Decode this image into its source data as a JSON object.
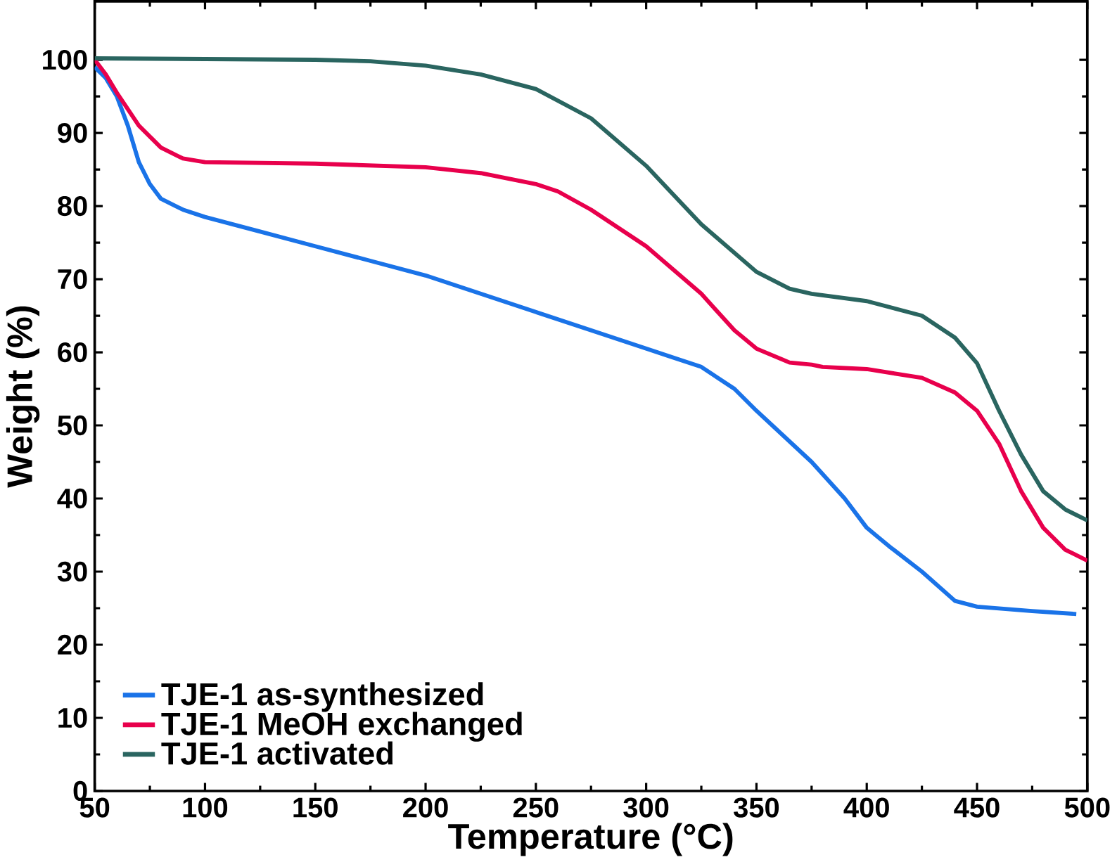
{
  "chart_data": {
    "type": "line",
    "xlabel": "Temperature (°C)",
    "ylabel": "Weight (%)",
    "xlim": [
      50,
      500
    ],
    "ylim": [
      0,
      108
    ],
    "xticks": [
      50,
      100,
      150,
      200,
      250,
      300,
      350,
      400,
      450,
      500
    ],
    "yticks": [
      0,
      10,
      20,
      30,
      40,
      50,
      60,
      70,
      80,
      90,
      100
    ],
    "legend": "bottom left",
    "grid": false,
    "marker": "none",
    "line_style": "solid",
    "series": [
      {
        "name": "TJE-1 as-synthesized",
        "color": "#1a73e8",
        "x": [
          50,
          55,
          60,
          65,
          70,
          75,
          80,
          90,
          100,
          125,
          150,
          175,
          200,
          225,
          250,
          275,
          300,
          325,
          340,
          350,
          375,
          390,
          400,
          410,
          425,
          440,
          450,
          475,
          495
        ],
        "values": [
          99,
          97.5,
          95,
          91,
          86,
          83,
          81,
          79.5,
          78.5,
          76.5,
          74.5,
          72.5,
          70.5,
          68,
          65.5,
          63,
          60.5,
          58,
          55,
          52,
          45,
          40,
          36,
          33.5,
          30,
          26,
          25.2,
          24.6,
          24.2
        ]
      },
      {
        "name": "TJE-1 MeOH exchanged",
        "color": "#e8004c",
        "x": [
          50,
          55,
          60,
          70,
          80,
          90,
          100,
          150,
          200,
          225,
          250,
          260,
          275,
          300,
          325,
          340,
          350,
          365,
          375,
          380,
          400,
          425,
          440,
          450,
          460,
          470,
          480,
          490,
          500
        ],
        "values": [
          100,
          98,
          95.5,
          91,
          88,
          86.5,
          86,
          85.8,
          85.3,
          84.5,
          83,
          82,
          79.5,
          74.5,
          68,
          63,
          60.5,
          58.6,
          58.3,
          58,
          57.7,
          56.5,
          54.5,
          52,
          47.5,
          41,
          36,
          33,
          31.5
        ]
      },
      {
        "name": "TJE-1 activated",
        "color": "#2a6560",
        "x": [
          50,
          100,
          150,
          175,
          200,
          225,
          250,
          275,
          300,
          325,
          350,
          365,
          375,
          400,
          425,
          440,
          450,
          460,
          470,
          480,
          490,
          500
        ],
        "values": [
          100.2,
          100.1,
          100,
          99.8,
          99.2,
          98,
          96,
          92,
          85.5,
          77.5,
          71,
          68.7,
          68,
          67,
          65,
          62,
          58.5,
          52,
          46,
          41,
          38.5,
          37
        ]
      }
    ]
  }
}
